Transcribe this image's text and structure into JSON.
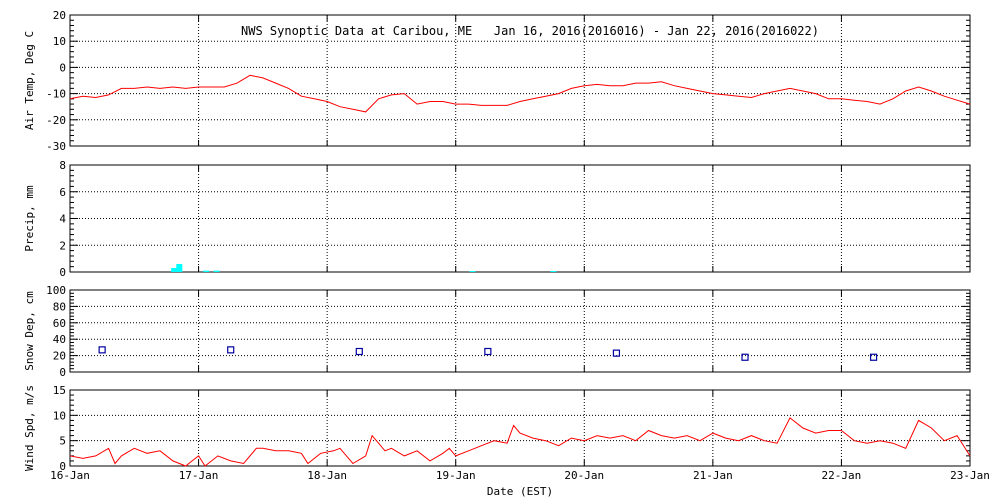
{
  "chart_data": {
    "title": "NWS Synoptic Data at Caribou, ME   Jan 16, 2016(2016016) - Jan 22, 2016(2016022)",
    "xlabel": "Date (EST)",
    "x_ticks": [
      "16-Jan",
      "17-Jan",
      "18-Jan",
      "19-Jan",
      "20-Jan",
      "21-Jan",
      "22-Jan",
      "23-Jan"
    ],
    "x_range": [
      0,
      7
    ],
    "colors": {
      "temp": "#ff0000",
      "precip": "#00ffff",
      "snow": "#0000a0",
      "wind": "#ff0000",
      "grid": "#000000"
    },
    "panels": [
      {
        "id": "air-temp",
        "type": "line",
        "ylabel": "Air Temp, Deg C",
        "ylim": [
          -30,
          20
        ],
        "yticks": [
          -30,
          -20,
          -10,
          0,
          10,
          20
        ],
        "grid": true,
        "x": [
          0,
          0.1,
          0.2,
          0.3,
          0.4,
          0.5,
          0.6,
          0.7,
          0.8,
          0.9,
          1.0,
          1.1,
          1.2,
          1.3,
          1.4,
          1.5,
          1.6,
          1.7,
          1.8,
          1.9,
          2.0,
          2.1,
          2.2,
          2.3,
          2.4,
          2.5,
          2.6,
          2.7,
          2.8,
          2.9,
          3.0,
          3.1,
          3.2,
          3.3,
          3.4,
          3.5,
          3.6,
          3.7,
          3.8,
          3.9,
          4.0,
          4.1,
          4.2,
          4.3,
          4.4,
          4.5,
          4.6,
          4.7,
          4.8,
          4.9,
          5.0,
          5.1,
          5.2,
          5.3,
          5.4,
          5.5,
          5.6,
          5.7,
          5.8,
          5.9,
          6.0,
          6.1,
          6.2,
          6.3,
          6.4,
          6.5,
          6.6,
          6.7,
          6.8,
          6.9,
          7.0
        ],
        "values": [
          -12,
          -11,
          -11.5,
          -10.5,
          -8,
          -8,
          -7.5,
          -8,
          -7.5,
          -8,
          -7.5,
          -7.5,
          -7.5,
          -6,
          -3,
          -4,
          -6,
          -8,
          -11,
          -12,
          -13,
          -15,
          -16,
          -17,
          -12,
          -10.5,
          -10,
          -14,
          -13,
          -13,
          -14,
          -14,
          -14.5,
          -14.5,
          -14.5,
          -13,
          -12,
          -11,
          -10,
          -8,
          -7,
          -6.5,
          -7,
          -7,
          -6,
          -6,
          -5.5,
          -7,
          -8,
          -9,
          -10,
          -10.5,
          -11,
          -11.5,
          -10,
          -9,
          -8,
          -9,
          -10,
          -12,
          -12,
          -12.5,
          -13,
          -14,
          -12,
          -9,
          -7.5,
          -9,
          -11,
          -12.5,
          -14
        ]
      },
      {
        "id": "precip",
        "type": "bar",
        "ylabel": "Precip, mm",
        "ylim": [
          0,
          8
        ],
        "yticks": [
          0,
          2,
          4,
          6,
          8
        ],
        "grid": true,
        "x": [
          0.81,
          0.85,
          1.06,
          1.14,
          3.13,
          3.76
        ],
        "values": [
          0.3,
          0.6,
          0.1,
          0.1,
          0.05,
          0.05
        ]
      },
      {
        "id": "snow-depth",
        "type": "scatter",
        "ylabel": "Snow Dep, cm",
        "ylim": [
          0,
          100
        ],
        "yticks": [
          0,
          20,
          40,
          60,
          80,
          100
        ],
        "grid": true,
        "x": [
          0.25,
          1.25,
          2.25,
          3.25,
          4.25,
          5.25,
          6.25
        ],
        "values": [
          27,
          27,
          25,
          25,
          23,
          18,
          18
        ]
      },
      {
        "id": "wind-speed",
        "type": "line",
        "ylabel": "Wind Spd, m/s",
        "ylim": [
          0,
          15
        ],
        "yticks": [
          0,
          5,
          10,
          15
        ],
        "grid": true,
        "x": [
          0.0,
          0.1,
          0.2,
          0.3,
          0.35,
          0.4,
          0.5,
          0.6,
          0.7,
          0.8,
          0.9,
          0.95,
          1.0,
          1.05,
          1.15,
          1.25,
          1.35,
          1.45,
          1.5,
          1.6,
          1.7,
          1.8,
          1.85,
          1.95,
          2.05,
          2.1,
          2.2,
          2.3,
          2.35,
          2.45,
          2.5,
          2.6,
          2.7,
          2.8,
          2.9,
          2.95,
          3.0,
          3.1,
          3.2,
          3.3,
          3.4,
          3.45,
          3.5,
          3.6,
          3.7,
          3.8,
          3.9,
          4.0,
          4.1,
          4.2,
          4.3,
          4.4,
          4.5,
          4.6,
          4.7,
          4.8,
          4.9,
          5.0,
          5.1,
          5.2,
          5.3,
          5.4,
          5.5,
          5.6,
          5.7,
          5.8,
          5.9,
          6.0,
          6.1,
          6.2,
          6.3,
          6.4,
          6.5,
          6.6,
          6.7,
          6.8,
          6.9,
          7.0
        ],
        "values": [
          2,
          1.5,
          2,
          3.5,
          0.5,
          2,
          3.5,
          2.5,
          3,
          1,
          0,
          1,
          2,
          0,
          2,
          1,
          0.5,
          3.5,
          3.5,
          3,
          3,
          2.5,
          0.5,
          2.5,
          3,
          3.5,
          0.5,
          2,
          6,
          3,
          3.5,
          2,
          3,
          1,
          2.5,
          3.5,
          2,
          3,
          4,
          5,
          4.5,
          8,
          6.5,
          5.5,
          5,
          4,
          5.5,
          5,
          6,
          5.5,
          6,
          5,
          7,
          6,
          5.5,
          6,
          5,
          6.5,
          5.5,
          5,
          6,
          5,
          4.5,
          9.5,
          7.5,
          6.5,
          7,
          7,
          5,
          4.5,
          5,
          4.5,
          3.5,
          9,
          7.5,
          5,
          6,
          2
        ]
      }
    ]
  }
}
